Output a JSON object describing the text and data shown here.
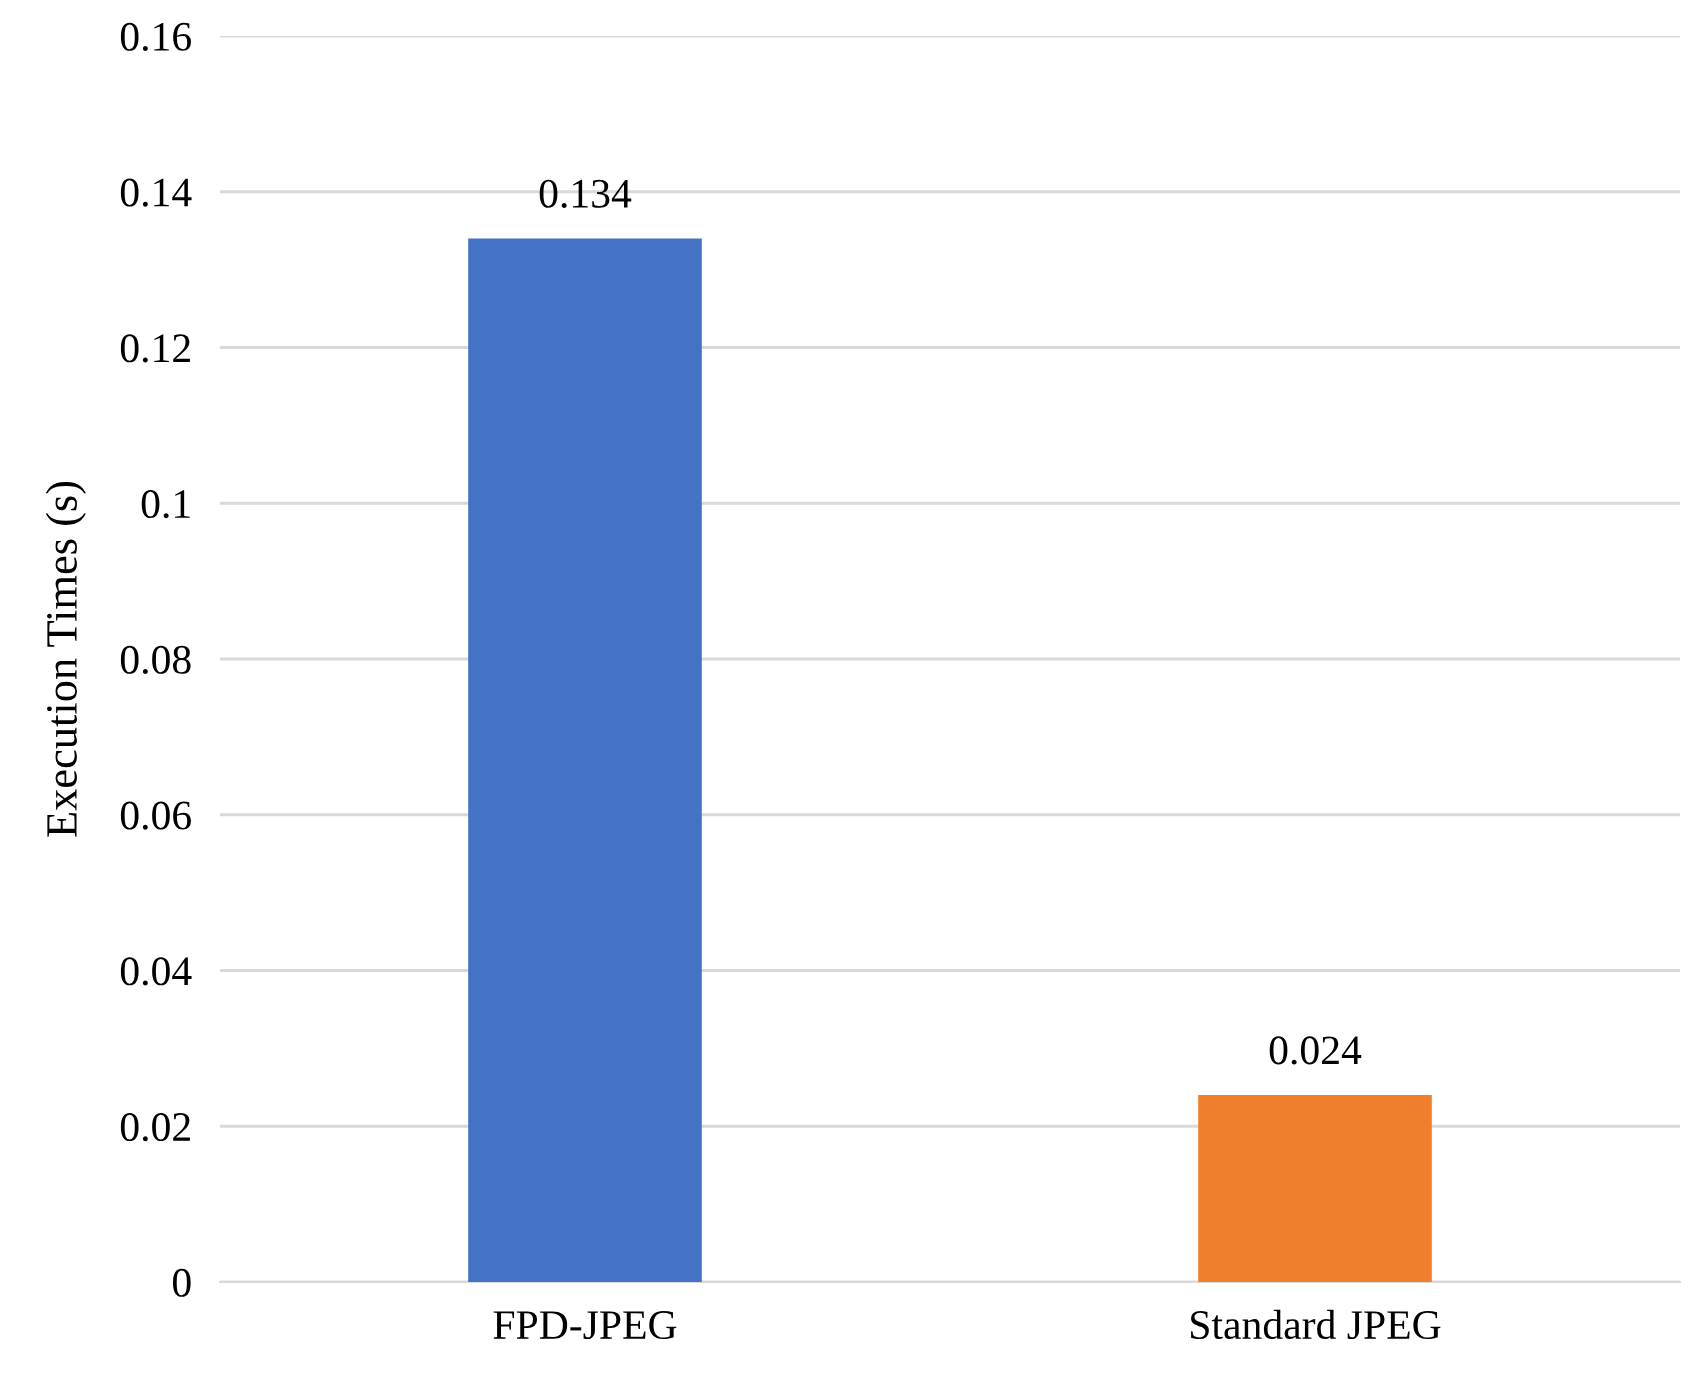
{
  "chart_data": {
    "type": "bar",
    "ylabel": "Execution Times (s)",
    "categories": [
      "FPD-JPEG",
      "Standard JPEG"
    ],
    "values": [
      0.134,
      0.024
    ],
    "colors": [
      "#4472c4",
      "#f07f2c"
    ],
    "ylim": [
      0,
      0.16
    ],
    "yticks": [
      0,
      0.02,
      0.04,
      0.06,
      0.08,
      0.1,
      0.12,
      0.14,
      0.16
    ],
    "grid": "y",
    "data_labels": true
  }
}
